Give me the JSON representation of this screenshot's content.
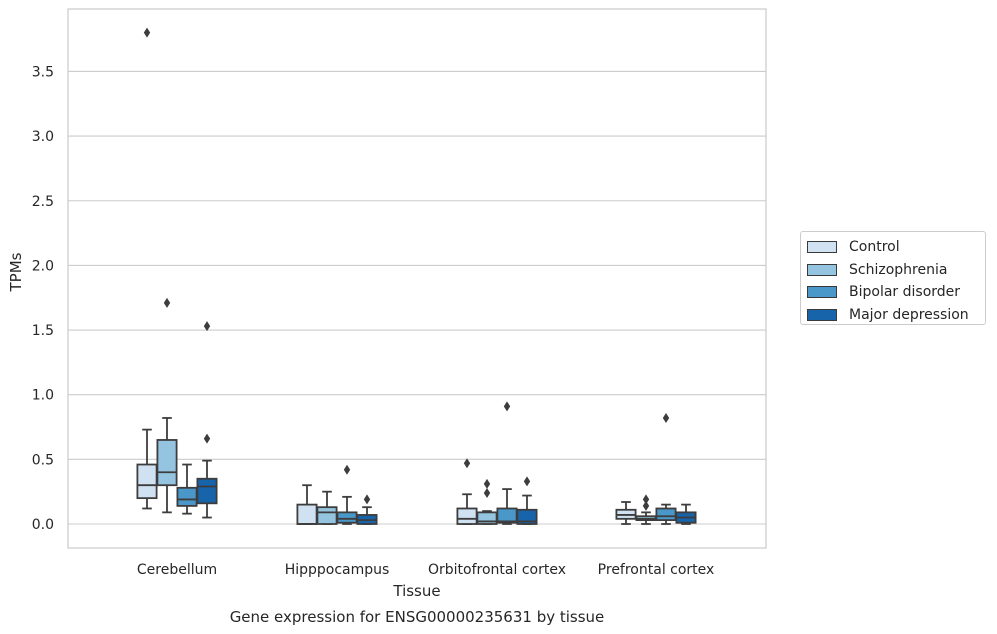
{
  "chart_data": {
    "type": "box",
    "xlabel": "Tissue",
    "ylabel": "TPMs",
    "footer": "Gene expression for ENSG00000235631 by tissue",
    "ylim": [
      -0.18,
      3.98
    ],
    "yticks": [
      0.0,
      0.5,
      1.0,
      1.5,
      2.0,
      2.5,
      3.0,
      3.5
    ],
    "ytick_labels": [
      "0.0",
      "0.5",
      "1.0",
      "1.5",
      "2.0",
      "2.5",
      "3.0",
      "3.5"
    ],
    "grid": "horizontal",
    "legend_position": "right",
    "categories": [
      "Cerebellum",
      "Hipppocampus",
      "Orbitofrontal cortex",
      "Prefrontal cortex"
    ],
    "series": [
      {
        "name": "Control",
        "color": "#d0e1f2",
        "boxes": [
          {
            "whislo": 0.12,
            "q1": 0.2,
            "med": 0.3,
            "q3": 0.46,
            "whishi": 0.73,
            "fliers": [
              3.8
            ]
          },
          {
            "whislo": 0.0,
            "q1": 0.0,
            "med": 0.0,
            "q3": 0.15,
            "whishi": 0.3,
            "fliers": []
          },
          {
            "whislo": 0.0,
            "q1": 0.0,
            "med": 0.04,
            "q3": 0.12,
            "whishi": 0.23,
            "fliers": [
              0.47
            ]
          },
          {
            "whislo": 0.0,
            "q1": 0.04,
            "med": 0.07,
            "q3": 0.11,
            "whishi": 0.17,
            "fliers": []
          }
        ]
      },
      {
        "name": "Schizophrenia",
        "color": "#94c4df",
        "boxes": [
          {
            "whislo": 0.09,
            "q1": 0.3,
            "med": 0.4,
            "q3": 0.65,
            "whishi": 0.82,
            "fliers": [
              1.71
            ]
          },
          {
            "whislo": 0.0,
            "q1": 0.0,
            "med": 0.09,
            "q3": 0.13,
            "whishi": 0.25,
            "fliers": []
          },
          {
            "whislo": 0.0,
            "q1": 0.0,
            "med": 0.02,
            "q3": 0.09,
            "whishi": 0.1,
            "fliers": [
              0.24,
              0.31
            ]
          },
          {
            "whislo": 0.0,
            "q1": 0.03,
            "med": 0.04,
            "q3": 0.06,
            "whishi": 0.09,
            "fliers": [
              0.14,
              0.19
            ]
          }
        ]
      },
      {
        "name": "Bipolar disorder",
        "color": "#4a98c9",
        "boxes": [
          {
            "whislo": 0.08,
            "q1": 0.14,
            "med": 0.19,
            "q3": 0.28,
            "whishi": 0.46,
            "fliers": []
          },
          {
            "whislo": 0.0,
            "q1": 0.01,
            "med": 0.04,
            "q3": 0.09,
            "whishi": 0.21,
            "fliers": [
              0.42
            ]
          },
          {
            "whislo": 0.0,
            "q1": 0.01,
            "med": 0.02,
            "q3": 0.12,
            "whishi": 0.27,
            "fliers": [
              0.91
            ]
          },
          {
            "whislo": 0.0,
            "q1": 0.03,
            "med": 0.06,
            "q3": 0.12,
            "whishi": 0.15,
            "fliers": [
              0.82
            ]
          }
        ]
      },
      {
        "name": "Major depression",
        "color": "#1764ab",
        "boxes": [
          {
            "whislo": 0.05,
            "q1": 0.16,
            "med": 0.29,
            "q3": 0.35,
            "whishi": 0.49,
            "fliers": [
              0.66,
              1.53
            ]
          },
          {
            "whislo": 0.0,
            "q1": 0.0,
            "med": 0.03,
            "q3": 0.07,
            "whishi": 0.13,
            "fliers": [
              0.19
            ]
          },
          {
            "whislo": 0.0,
            "q1": 0.0,
            "med": 0.02,
            "q3": 0.11,
            "whishi": 0.22,
            "fliers": [
              0.33
            ]
          },
          {
            "whislo": 0.0,
            "q1": 0.01,
            "med": 0.05,
            "q3": 0.09,
            "whishi": 0.15,
            "fliers": []
          }
        ]
      }
    ]
  }
}
